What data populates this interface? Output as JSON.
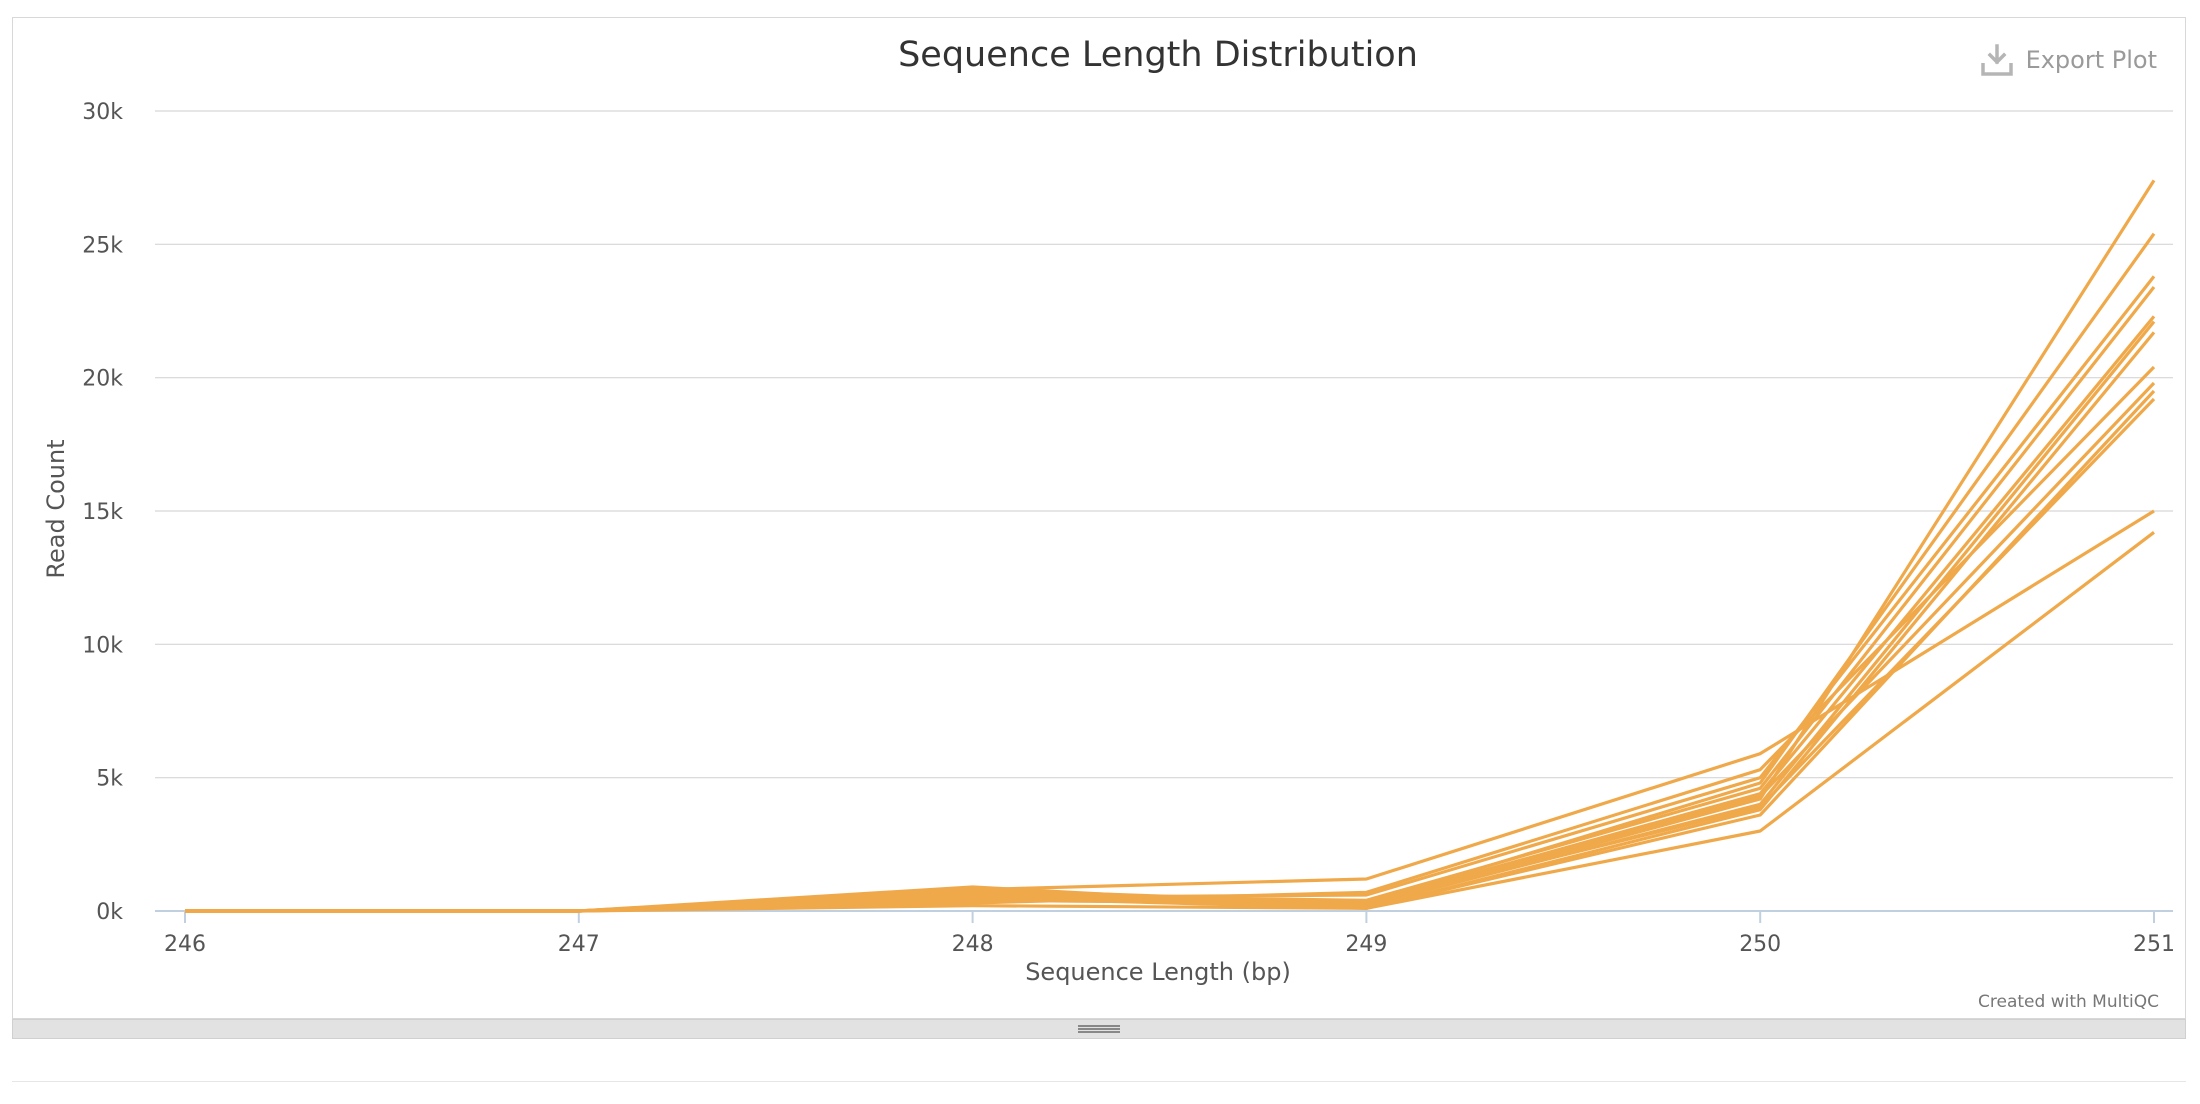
{
  "export_label": "Export Plot",
  "credit": "Created with MultiQC",
  "chart_data": {
    "type": "line",
    "title": "Sequence Length Distribution",
    "xlabel": "Sequence Length (bp)",
    "ylabel": "Read Count",
    "x": [
      246,
      247,
      248,
      249,
      250,
      251
    ],
    "xlim": [
      246,
      251
    ],
    "ylim": [
      0,
      30000
    ],
    "y_ticks": [
      0,
      5000,
      10000,
      15000,
      20000,
      25000,
      30000
    ],
    "y_tick_labels": [
      "0k",
      "5k",
      "10k",
      "15k",
      "20k",
      "25k",
      "30k"
    ],
    "x_tick_labels": [
      "246",
      "247",
      "248",
      "249",
      "250",
      "251"
    ],
    "grid": true,
    "line_color": "#f0a94a",
    "series": [
      {
        "values": [
          0,
          0,
          700,
          200,
          4200,
          27400
        ]
      },
      {
        "values": [
          0,
          0,
          800,
          300,
          4800,
          25400
        ]
      },
      {
        "values": [
          0,
          0,
          500,
          600,
          5000,
          23800
        ]
      },
      {
        "values": [
          0,
          0,
          600,
          400,
          4600,
          23400
        ]
      },
      {
        "values": [
          0,
          0,
          400,
          300,
          4400,
          22300
        ]
      },
      {
        "values": [
          0,
          0,
          700,
          200,
          4000,
          22100
        ]
      },
      {
        "values": [
          0,
          0,
          500,
          100,
          3800,
          21700
        ]
      },
      {
        "values": [
          0,
          0,
          300,
          700,
          5300,
          20400
        ]
      },
      {
        "values": [
          0,
          0,
          600,
          200,
          4300,
          19800
        ]
      },
      {
        "values": [
          0,
          0,
          900,
          100,
          3600,
          19500
        ]
      },
      {
        "values": [
          0,
          0,
          400,
          300,
          3900,
          19200
        ]
      },
      {
        "values": [
          0,
          0,
          800,
          1200,
          5900,
          15000
        ]
      },
      {
        "values": [
          0,
          0,
          200,
          100,
          3000,
          14200
        ]
      }
    ]
  }
}
